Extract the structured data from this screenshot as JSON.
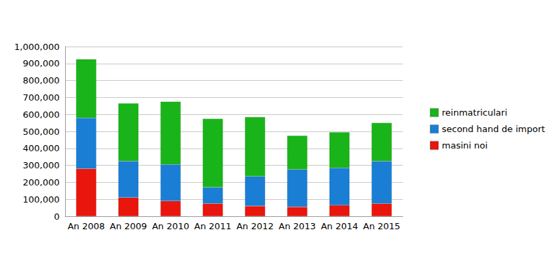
{
  "chart_data": {
    "type": "bar",
    "stacked": true,
    "grid": true,
    "legend": "right",
    "categories": [
      "An 2008",
      "An 2009",
      "An 2010",
      "An 2011",
      "An 2012",
      "An 2013",
      "An 2014",
      "An 2015"
    ],
    "series": [
      {
        "name": "masini noi",
        "color": "#e8160c",
        "values": [
          280000,
          110000,
          90000,
          75000,
          60000,
          55000,
          65000,
          75000
        ]
      },
      {
        "name": "second hand de import",
        "color": "#1a7fd4",
        "values": [
          300000,
          215000,
          215000,
          95000,
          175000,
          220000,
          220000,
          250000
        ]
      },
      {
        "name": "reinmatriculari",
        "color": "#19b419",
        "values": [
          345000,
          340000,
          370000,
          405000,
          350000,
          200000,
          210000,
          225000
        ]
      }
    ],
    "ylim": [
      0,
      1000000
    ],
    "yticks": [
      0,
      {
        "value": 100000,
        "label": "100,000"
      },
      {
        "value": 200000,
        "label": "200,000"
      },
      {
        "value": 300000,
        "label": "300,000"
      },
      {
        "value": 400000,
        "label": "400,000"
      },
      {
        "value": 500000,
        "label": "500,000"
      },
      {
        "value": 600000,
        "label": "600,000"
      },
      {
        "value": 700000,
        "label": "700,000"
      },
      {
        "value": 800000,
        "label": "800,000"
      },
      {
        "value": 900000,
        "label": "900,000"
      },
      {
        "value": 1000000,
        "label": "1,000,000"
      }
    ]
  }
}
